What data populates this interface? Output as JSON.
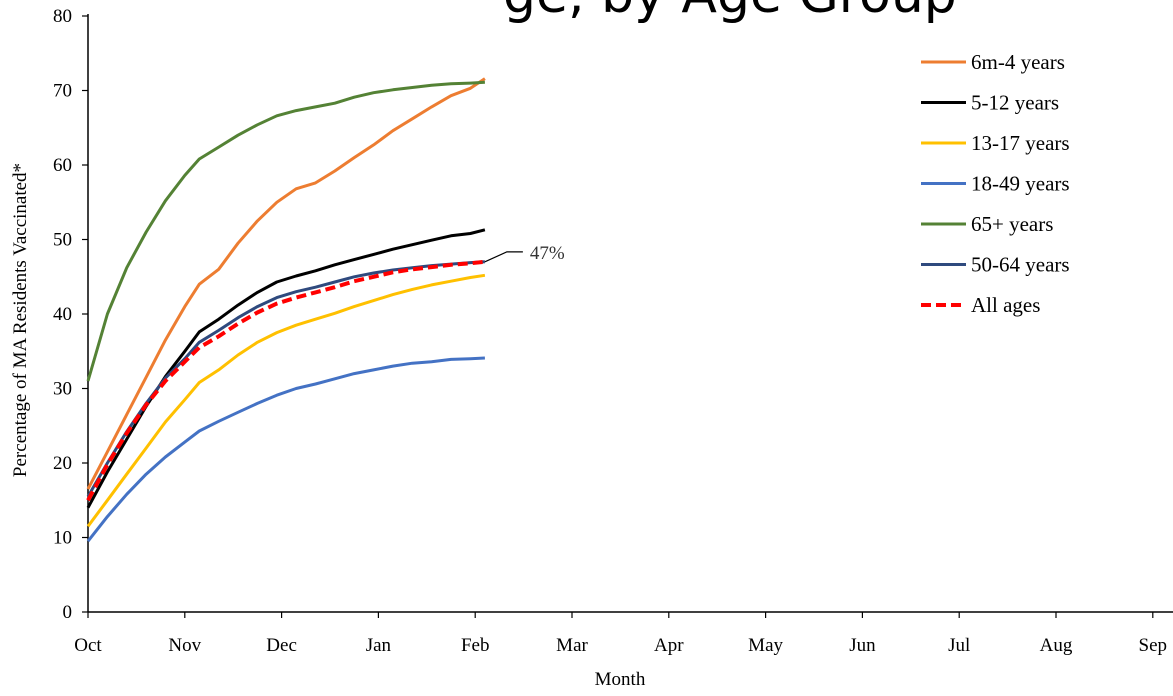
{
  "heading_fragment": "ge, by Age Group",
  "chart_data": {
    "type": "line",
    "xlabel": "Month",
    "ylabel": "Percentage of MA Residents Vaccinated*",
    "categories": [
      "Oct",
      "Nov",
      "Dec",
      "Jan",
      "Feb",
      "Mar",
      "Apr",
      "May",
      "Jun",
      "Jul",
      "Aug",
      "Sep"
    ],
    "ylim": [
      0,
      80
    ],
    "yticks": [
      0,
      10,
      20,
      30,
      40,
      50,
      60,
      70,
      80
    ],
    "grid": false,
    "legend_position": "top-right",
    "annotation": {
      "text": "47%",
      "x": 4.9,
      "y": 47
    },
    "series": [
      {
        "name": "6m-4 years",
        "color": "#ED7D31",
        "dash": false,
        "points": [
          [
            0,
            16.5
          ],
          [
            0.2,
            21.5
          ],
          [
            0.4,
            26.5
          ],
          [
            0.6,
            31.5
          ],
          [
            0.8,
            36.5
          ],
          [
            1.0,
            41.0
          ],
          [
            1.15,
            44.0
          ],
          [
            1.35,
            46.0
          ],
          [
            1.55,
            49.5
          ],
          [
            1.75,
            52.5
          ],
          [
            1.95,
            55.0
          ],
          [
            2.15,
            56.8
          ],
          [
            2.35,
            57.6
          ],
          [
            2.55,
            59.2
          ],
          [
            2.75,
            61.0
          ],
          [
            2.95,
            62.7
          ],
          [
            3.15,
            64.6
          ],
          [
            3.35,
            66.2
          ],
          [
            3.55,
            67.8
          ],
          [
            3.75,
            69.3
          ],
          [
            3.95,
            70.3
          ],
          [
            4.1,
            71.6
          ]
        ]
      },
      {
        "name": "5-12 years",
        "color": "#000000",
        "dash": false,
        "points": [
          [
            0,
            14.0
          ],
          [
            0.2,
            18.8
          ],
          [
            0.4,
            23.2
          ],
          [
            0.6,
            27.6
          ],
          [
            0.8,
            31.6
          ],
          [
            1.0,
            35.0
          ],
          [
            1.15,
            37.6
          ],
          [
            1.35,
            39.3
          ],
          [
            1.55,
            41.2
          ],
          [
            1.75,
            42.9
          ],
          [
            1.95,
            44.3
          ],
          [
            2.15,
            45.1
          ],
          [
            2.35,
            45.8
          ],
          [
            2.55,
            46.6
          ],
          [
            2.75,
            47.3
          ],
          [
            2.95,
            48.0
          ],
          [
            3.15,
            48.7
          ],
          [
            3.35,
            49.3
          ],
          [
            3.55,
            49.9
          ],
          [
            3.75,
            50.5
          ],
          [
            3.95,
            50.8
          ],
          [
            4.1,
            51.3
          ]
        ]
      },
      {
        "name": "13-17 years",
        "color": "#FFC000",
        "dash": false,
        "points": [
          [
            0,
            11.5
          ],
          [
            0.2,
            15.0
          ],
          [
            0.4,
            18.5
          ],
          [
            0.6,
            22.0
          ],
          [
            0.8,
            25.5
          ],
          [
            1.0,
            28.5
          ],
          [
            1.15,
            30.8
          ],
          [
            1.35,
            32.5
          ],
          [
            1.55,
            34.5
          ],
          [
            1.75,
            36.2
          ],
          [
            1.95,
            37.5
          ],
          [
            2.15,
            38.5
          ],
          [
            2.35,
            39.3
          ],
          [
            2.55,
            40.1
          ],
          [
            2.75,
            41.0
          ],
          [
            2.95,
            41.8
          ],
          [
            3.15,
            42.6
          ],
          [
            3.35,
            43.3
          ],
          [
            3.55,
            43.9
          ],
          [
            3.75,
            44.4
          ],
          [
            3.95,
            44.9
          ],
          [
            4.1,
            45.2
          ]
        ]
      },
      {
        "name": "18-49 years",
        "color": "#4472C4",
        "dash": false,
        "points": [
          [
            0,
            9.5
          ],
          [
            0.2,
            12.8
          ],
          [
            0.4,
            15.8
          ],
          [
            0.6,
            18.5
          ],
          [
            0.8,
            20.8
          ],
          [
            1.0,
            22.8
          ],
          [
            1.15,
            24.3
          ],
          [
            1.35,
            25.6
          ],
          [
            1.55,
            26.8
          ],
          [
            1.75,
            28.0
          ],
          [
            1.95,
            29.1
          ],
          [
            2.15,
            30.0
          ],
          [
            2.35,
            30.6
          ],
          [
            2.55,
            31.3
          ],
          [
            2.75,
            32.0
          ],
          [
            2.95,
            32.5
          ],
          [
            3.15,
            33.0
          ],
          [
            3.35,
            33.4
          ],
          [
            3.55,
            33.6
          ],
          [
            3.75,
            33.9
          ],
          [
            3.95,
            34.0
          ],
          [
            4.1,
            34.1
          ]
        ]
      },
      {
        "name": "65+ years",
        "color": "#548235",
        "dash": false,
        "points": [
          [
            0,
            31.0
          ],
          [
            0.2,
            40.0
          ],
          [
            0.4,
            46.2
          ],
          [
            0.6,
            51.0
          ],
          [
            0.8,
            55.2
          ],
          [
            1.0,
            58.6
          ],
          [
            1.15,
            60.8
          ],
          [
            1.35,
            62.4
          ],
          [
            1.55,
            64.0
          ],
          [
            1.75,
            65.4
          ],
          [
            1.95,
            66.6
          ],
          [
            2.15,
            67.3
          ],
          [
            2.35,
            67.8
          ],
          [
            2.55,
            68.3
          ],
          [
            2.75,
            69.1
          ],
          [
            2.95,
            69.7
          ],
          [
            3.15,
            70.1
          ],
          [
            3.35,
            70.4
          ],
          [
            3.55,
            70.7
          ],
          [
            3.75,
            70.9
          ],
          [
            3.95,
            71.0
          ],
          [
            4.1,
            71.1
          ]
        ]
      },
      {
        "name": "50-64 years",
        "color": "#2F4A7E",
        "dash": false,
        "points": [
          [
            0,
            15.5
          ],
          [
            0.2,
            20.0
          ],
          [
            0.4,
            24.2
          ],
          [
            0.6,
            28.0
          ],
          [
            0.8,
            31.4
          ],
          [
            1.0,
            34.0
          ],
          [
            1.15,
            36.2
          ],
          [
            1.35,
            37.8
          ],
          [
            1.55,
            39.5
          ],
          [
            1.75,
            41.0
          ],
          [
            1.95,
            42.2
          ],
          [
            2.15,
            43.0
          ],
          [
            2.35,
            43.6
          ],
          [
            2.55,
            44.3
          ],
          [
            2.75,
            45.0
          ],
          [
            2.95,
            45.5
          ],
          [
            3.15,
            45.9
          ],
          [
            3.35,
            46.2
          ],
          [
            3.55,
            46.5
          ],
          [
            3.75,
            46.7
          ],
          [
            3.95,
            46.9
          ],
          [
            4.1,
            47.0
          ]
        ]
      },
      {
        "name": "All ages",
        "color": "#FF0000",
        "dash": true,
        "points": [
          [
            0,
            15.0
          ],
          [
            0.2,
            19.8
          ],
          [
            0.4,
            24.0
          ],
          [
            0.6,
            27.8
          ],
          [
            0.8,
            31.0
          ],
          [
            1.0,
            33.6
          ],
          [
            1.15,
            35.5
          ],
          [
            1.35,
            37.0
          ],
          [
            1.55,
            38.7
          ],
          [
            1.75,
            40.2
          ],
          [
            1.95,
            41.4
          ],
          [
            2.15,
            42.2
          ],
          [
            2.35,
            42.9
          ],
          [
            2.55,
            43.6
          ],
          [
            2.75,
            44.4
          ],
          [
            2.95,
            45.0
          ],
          [
            3.15,
            45.6
          ],
          [
            3.35,
            46.0
          ],
          [
            3.55,
            46.3
          ],
          [
            3.75,
            46.6
          ],
          [
            3.95,
            46.8
          ],
          [
            4.1,
            47.0
          ]
        ]
      }
    ]
  }
}
